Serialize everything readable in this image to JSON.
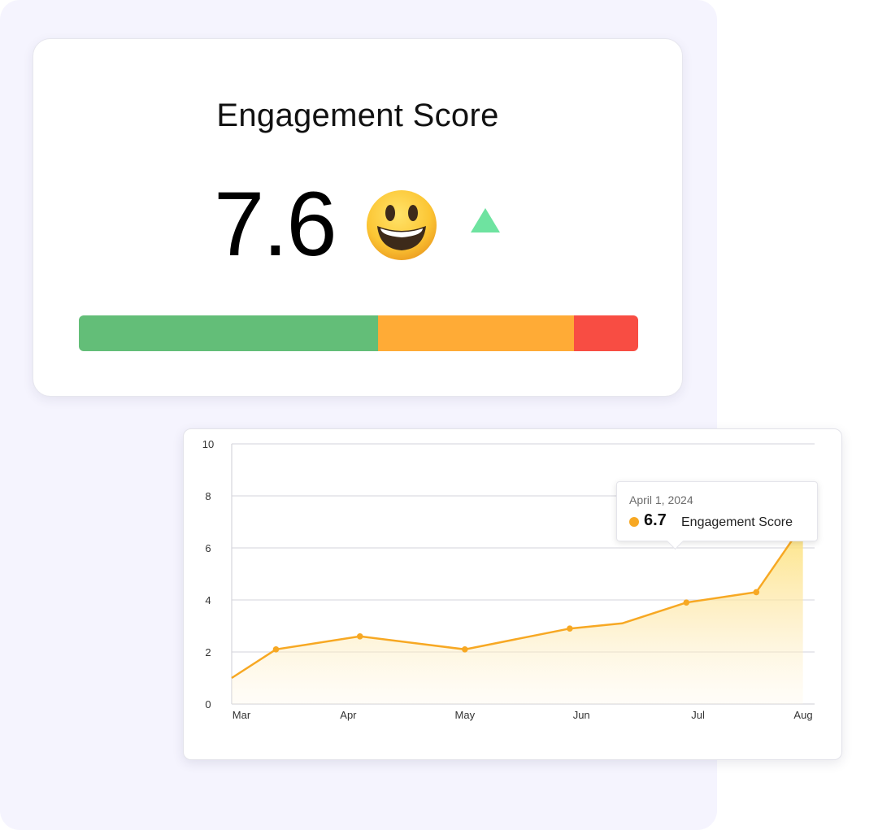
{
  "score_card": {
    "title": "Engagement Score",
    "value": "7.6",
    "emoji_icon": "grinning-face-emoji",
    "trend_icon": "triangle-up-icon",
    "trend_color": "#6ee3a0",
    "bar_segments": [
      {
        "label": "green",
        "fraction": 0.535,
        "color": "#63be78"
      },
      {
        "label": "orange",
        "fraction": 0.35,
        "color": "#ffab36"
      },
      {
        "label": "red",
        "fraction": 0.115,
        "color": "#f84d43"
      }
    ]
  },
  "tooltip": {
    "date": "April 1, 2024",
    "value": "6.7",
    "series": "Engagement Score",
    "color": "#f7a823"
  },
  "chart_data": {
    "type": "area",
    "x_labels": [
      "Mar",
      "Apr",
      "May",
      "Jun",
      "Jul",
      "Aug"
    ],
    "x": [
      0,
      0.38,
      1.1,
      2.0,
      2.9,
      3.35,
      3.9,
      4.5
    ],
    "values": [
      1.0,
      2.1,
      2.6,
      2.1,
      2.9,
      3.1,
      3.9,
      4.3
    ],
    "peak_segment": {
      "x": [
        3.9,
        4.5
      ],
      "values": [
        3.9,
        4.3
      ]
    },
    "yticks": [
      0,
      2,
      4,
      6,
      8,
      10
    ],
    "ylim": [
      0,
      10
    ],
    "grid": true,
    "line_color": "#f7a823",
    "fill_color_top": "#fde27a"
  }
}
